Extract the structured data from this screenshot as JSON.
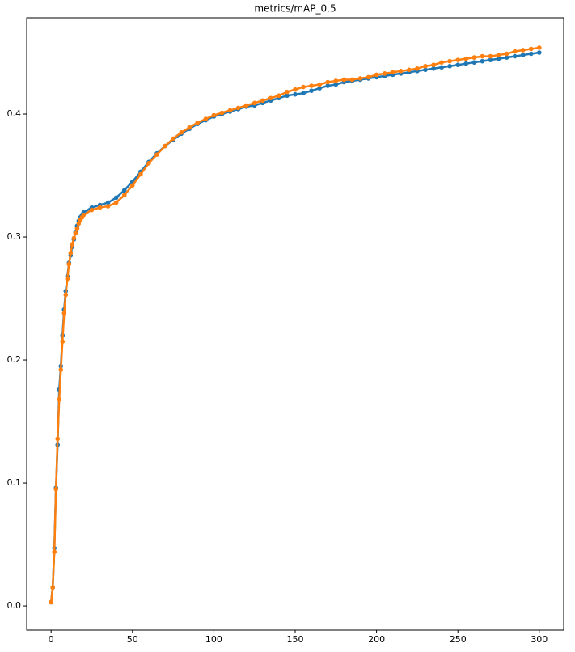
{
  "chart_data": {
    "type": "line",
    "title": "metrics/mAP_0.5",
    "x": [
      0,
      1,
      2,
      3,
      4,
      5,
      6,
      7,
      8,
      9,
      10,
      11,
      12,
      13,
      14,
      15,
      16,
      17,
      18,
      19,
      20,
      25,
      30,
      35,
      40,
      45,
      50,
      55,
      60,
      65,
      70,
      75,
      80,
      85,
      90,
      95,
      100,
      105,
      110,
      115,
      120,
      125,
      130,
      135,
      140,
      145,
      150,
      155,
      160,
      165,
      170,
      175,
      180,
      185,
      190,
      195,
      200,
      205,
      210,
      215,
      220,
      225,
      230,
      235,
      240,
      245,
      250,
      255,
      260,
      265,
      270,
      275,
      280,
      285,
      290,
      295,
      300
    ],
    "series": [
      {
        "color": "#1f77b4",
        "values": [
          0.003,
          0.015,
          0.047,
          0.096,
          0.131,
          0.176,
          0.195,
          0.22,
          0.241,
          0.256,
          0.268,
          0.279,
          0.285,
          0.292,
          0.298,
          0.304,
          0.309,
          0.313,
          0.316,
          0.318,
          0.32,
          0.324,
          0.326,
          0.328,
          0.332,
          0.338,
          0.345,
          0.353,
          0.361,
          0.368,
          0.374,
          0.379,
          0.384,
          0.388,
          0.392,
          0.395,
          0.398,
          0.4,
          0.402,
          0.404,
          0.406,
          0.407,
          0.409,
          0.411,
          0.413,
          0.415,
          0.416,
          0.417,
          0.419,
          0.421,
          0.423,
          0.424,
          0.426,
          0.427,
          0.428,
          0.429,
          0.43,
          0.431,
          0.432,
          0.433,
          0.434,
          0.435,
          0.436,
          0.437,
          0.438,
          0.439,
          0.44,
          0.441,
          0.442,
          0.443,
          0.444,
          0.445,
          0.446,
          0.447,
          0.448,
          0.449,
          0.45
        ]
      },
      {
        "color": "#ff7f0e",
        "values": [
          0.003,
          0.015,
          0.044,
          0.095,
          0.136,
          0.168,
          0.192,
          0.215,
          0.238,
          0.253,
          0.266,
          0.278,
          0.287,
          0.294,
          0.299,
          0.303,
          0.307,
          0.311,
          0.314,
          0.316,
          0.318,
          0.322,
          0.324,
          0.325,
          0.328,
          0.334,
          0.342,
          0.351,
          0.36,
          0.367,
          0.374,
          0.38,
          0.385,
          0.389,
          0.393,
          0.396,
          0.399,
          0.401,
          0.403,
          0.405,
          0.407,
          0.409,
          0.411,
          0.413,
          0.415,
          0.418,
          0.42,
          0.422,
          0.423,
          0.424,
          0.426,
          0.427,
          0.428,
          0.428,
          0.429,
          0.43,
          0.432,
          0.433,
          0.434,
          0.435,
          0.436,
          0.437,
          0.439,
          0.44,
          0.442,
          0.443,
          0.444,
          0.445,
          0.446,
          0.447,
          0.447,
          0.448,
          0.449,
          0.451,
          0.452,
          0.453,
          0.454
        ]
      }
    ],
    "xlim": [
      -15,
      315
    ],
    "xticks": [
      0,
      50,
      100,
      150,
      200,
      250,
      300
    ],
    "ylim": [
      -0.0197,
      0.4783
    ],
    "yticks": [
      {
        "value": 0,
        "label": "0.0"
      },
      0.1,
      0.2,
      0.3,
      0.4
    ],
    "grid": false
  }
}
